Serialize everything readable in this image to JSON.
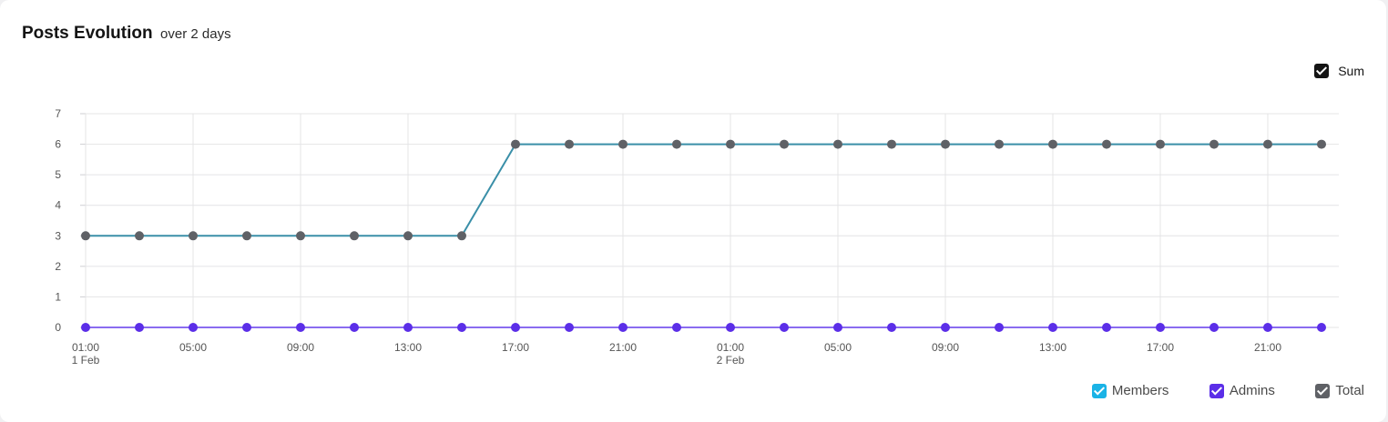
{
  "header": {
    "title": "Posts Evolution",
    "subtitle": "over 2 days"
  },
  "sum_toggle": {
    "label": "Sum",
    "checked": true,
    "color": "#141414"
  },
  "chart_data": {
    "type": "line",
    "title": "Posts Evolution",
    "subtitle": "over 2 days",
    "xlabel": "",
    "ylabel": "",
    "ylim": [
      0,
      7
    ],
    "y_ticks": [
      "0",
      "1",
      "2",
      "3",
      "4",
      "5",
      "6",
      "7"
    ],
    "x_tick_labels": [
      {
        "time": "01:00",
        "date": "1 Feb"
      },
      {
        "time": "05:00",
        "date": ""
      },
      {
        "time": "09:00",
        "date": ""
      },
      {
        "time": "13:00",
        "date": ""
      },
      {
        "time": "17:00",
        "date": ""
      },
      {
        "time": "21:00",
        "date": ""
      },
      {
        "time": "01:00",
        "date": "2 Feb"
      },
      {
        "time": "05:00",
        "date": ""
      },
      {
        "time": "09:00",
        "date": ""
      },
      {
        "time": "13:00",
        "date": ""
      },
      {
        "time": "17:00",
        "date": ""
      },
      {
        "time": "21:00",
        "date": ""
      }
    ],
    "categories": [
      "1 Feb 01:00",
      "1 Feb 03:00",
      "1 Feb 05:00",
      "1 Feb 07:00",
      "1 Feb 09:00",
      "1 Feb 11:00",
      "1 Feb 13:00",
      "1 Feb 15:00",
      "1 Feb 17:00",
      "1 Feb 19:00",
      "1 Feb 21:00",
      "1 Feb 23:00",
      "2 Feb 01:00",
      "2 Feb 03:00",
      "2 Feb 05:00",
      "2 Feb 07:00",
      "2 Feb 09:00",
      "2 Feb 11:00",
      "2 Feb 13:00",
      "2 Feb 15:00",
      "2 Feb 17:00",
      "2 Feb 19:00",
      "2 Feb 21:00",
      "2 Feb 23:00"
    ],
    "grid": true,
    "legend_position": "bottom-right",
    "series": [
      {
        "name": "Members",
        "color": "#1ab3e6",
        "visible": true,
        "values": [
          3,
          3,
          3,
          3,
          3,
          3,
          3,
          3,
          6,
          6,
          6,
          6,
          6,
          6,
          6,
          6,
          6,
          6,
          6,
          6,
          6,
          6,
          6,
          6
        ]
      },
      {
        "name": "Admins",
        "color": "#5b2ee8",
        "visible": true,
        "values": [
          0,
          0,
          0,
          0,
          0,
          0,
          0,
          0,
          0,
          0,
          0,
          0,
          0,
          0,
          0,
          0,
          0,
          0,
          0,
          0,
          0,
          0,
          0,
          0
        ]
      },
      {
        "name": "Total",
        "color": "#5f6166",
        "visible": true,
        "values": [
          3,
          3,
          3,
          3,
          3,
          3,
          3,
          3,
          6,
          6,
          6,
          6,
          6,
          6,
          6,
          6,
          6,
          6,
          6,
          6,
          6,
          6,
          6,
          6
        ]
      }
    ]
  }
}
